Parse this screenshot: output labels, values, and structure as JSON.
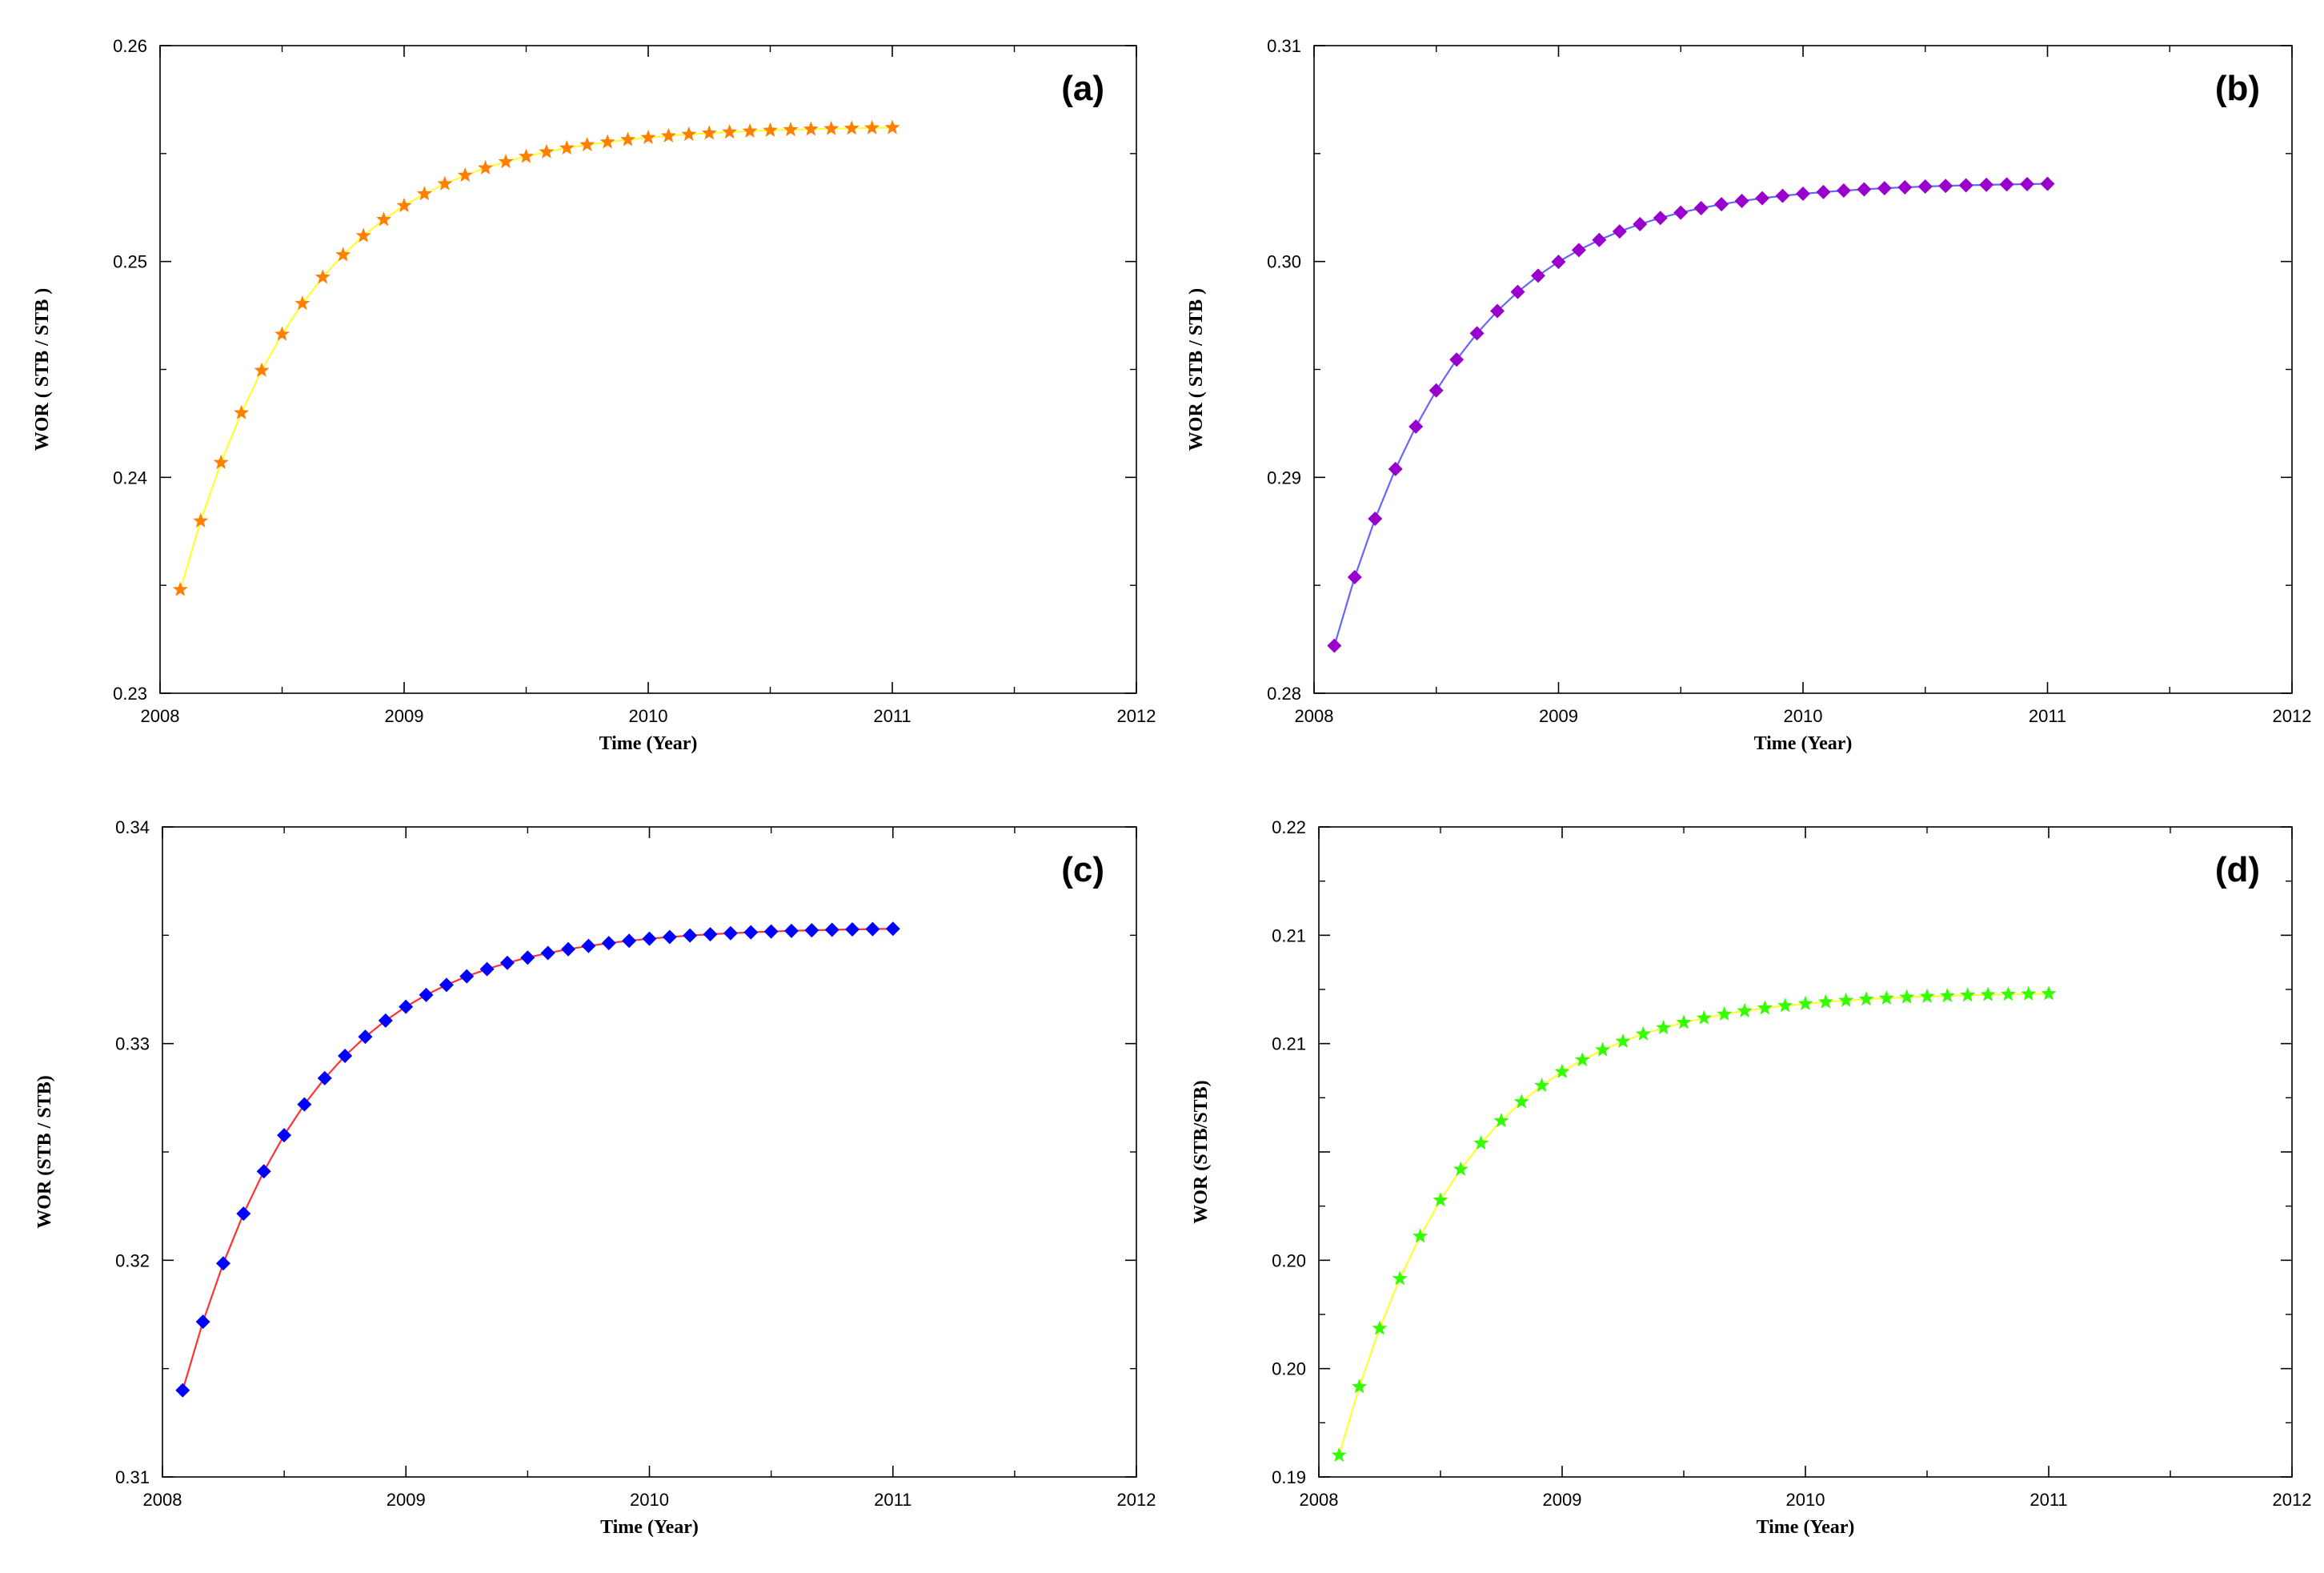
{
  "chart_data": [
    {
      "type": "line",
      "panel_label": "(a)",
      "xlabel": "Time (Year)",
      "ylabel": "WOR ( STB / STB )",
      "xlim": [
        2008,
        2012
      ],
      "ylim": [
        0.23,
        0.26
      ],
      "xticks": [
        "2008",
        "2009",
        "2010",
        "2011",
        "2012"
      ],
      "xtick_values": [
        2008,
        2009,
        2010,
        2011,
        2012
      ],
      "yticks": [
        "0.23",
        "0.24",
        "0.25",
        "0.26"
      ],
      "ytick_values": [
        0.23,
        0.24,
        0.25,
        0.26
      ],
      "line_color": "#ffff33",
      "marker_color": "#ff7f00",
      "marker": "star",
      "x_start": 2008.083,
      "x_end": 2011.0,
      "n_points": 36,
      "y_start": 0.2348,
      "y_end": 0.2562,
      "curve_rate": 0.16
    },
    {
      "type": "line",
      "panel_label": "(b)",
      "xlabel": "Time (Year)",
      "ylabel": "WOR ( STB / STB )",
      "xlim": [
        2008,
        2012
      ],
      "ylim": [
        0.28,
        0.31
      ],
      "xticks": [
        "2008",
        "2009",
        "2010",
        "2011",
        "2012"
      ],
      "xtick_values": [
        2008,
        2009,
        2010,
        2011,
        2012
      ],
      "yticks": [
        "0.28",
        "0.29",
        "0.30",
        "0.31"
      ],
      "ytick_values": [
        0.28,
        0.29,
        0.3,
        0.31
      ],
      "line_color": "#6666ff",
      "marker_color": "#9900cc",
      "marker": "diamond",
      "x_start": 2008.083,
      "x_end": 2011.0,
      "n_points": 36,
      "y_start": 0.2822,
      "y_end": 0.3036,
      "curve_rate": 0.16
    },
    {
      "type": "line",
      "panel_label": "(c)",
      "xlabel": "Time (Year)",
      "ylabel": "WOR (STB / STB)",
      "xlim": [
        2008,
        2012
      ],
      "ylim": [
        0.31,
        0.34
      ],
      "xticks": [
        "2008",
        "2009",
        "2010",
        "2011",
        "2012"
      ],
      "xtick_values": [
        2008,
        2009,
        2010,
        2011,
        2012
      ],
      "yticks": [
        "0.31",
        "0.32",
        "0.33",
        "0.34"
      ],
      "ytick_values": [
        0.31,
        0.32,
        0.33,
        0.34
      ],
      "line_color": "#ff3333",
      "marker_color": "#0000ff",
      "marker": "diamond",
      "x_start": 2008.083,
      "x_end": 2011.0,
      "n_points": 36,
      "y_start": 0.314,
      "y_end": 0.3353,
      "curve_rate": 0.16
    },
    {
      "type": "line",
      "panel_label": "(d)",
      "xlabel": "Time (Year)",
      "ylabel": "WOR (STB/STB)",
      "xlim": [
        2008,
        2012
      ],
      "ylim": [
        0.19,
        0.22
      ],
      "xticks": [
        "2008",
        "2009",
        "2010",
        "2011",
        "2012"
      ],
      "xtick_values": [
        2008,
        2009,
        2010,
        2011,
        2012
      ],
      "yticks": [
        "0.19",
        "0.20",
        "0.20",
        "0.21",
        "0.21",
        "0.22"
      ],
      "ytick_values": [
        0.19,
        0.195,
        0.2,
        0.205,
        0.21,
        0.215,
        0.22
      ],
      "ytick_label_values": [
        0.19,
        0.195,
        0.2,
        0.21,
        0.215,
        0.22
      ],
      "line_color": "#ffff33",
      "marker_color": "#33ff00",
      "marker": "star",
      "x_start": 2008.083,
      "x_end": 2011.0,
      "n_points": 36,
      "y_start": 0.191,
      "y_end": 0.2123,
      "curve_rate": 0.16
    }
  ]
}
